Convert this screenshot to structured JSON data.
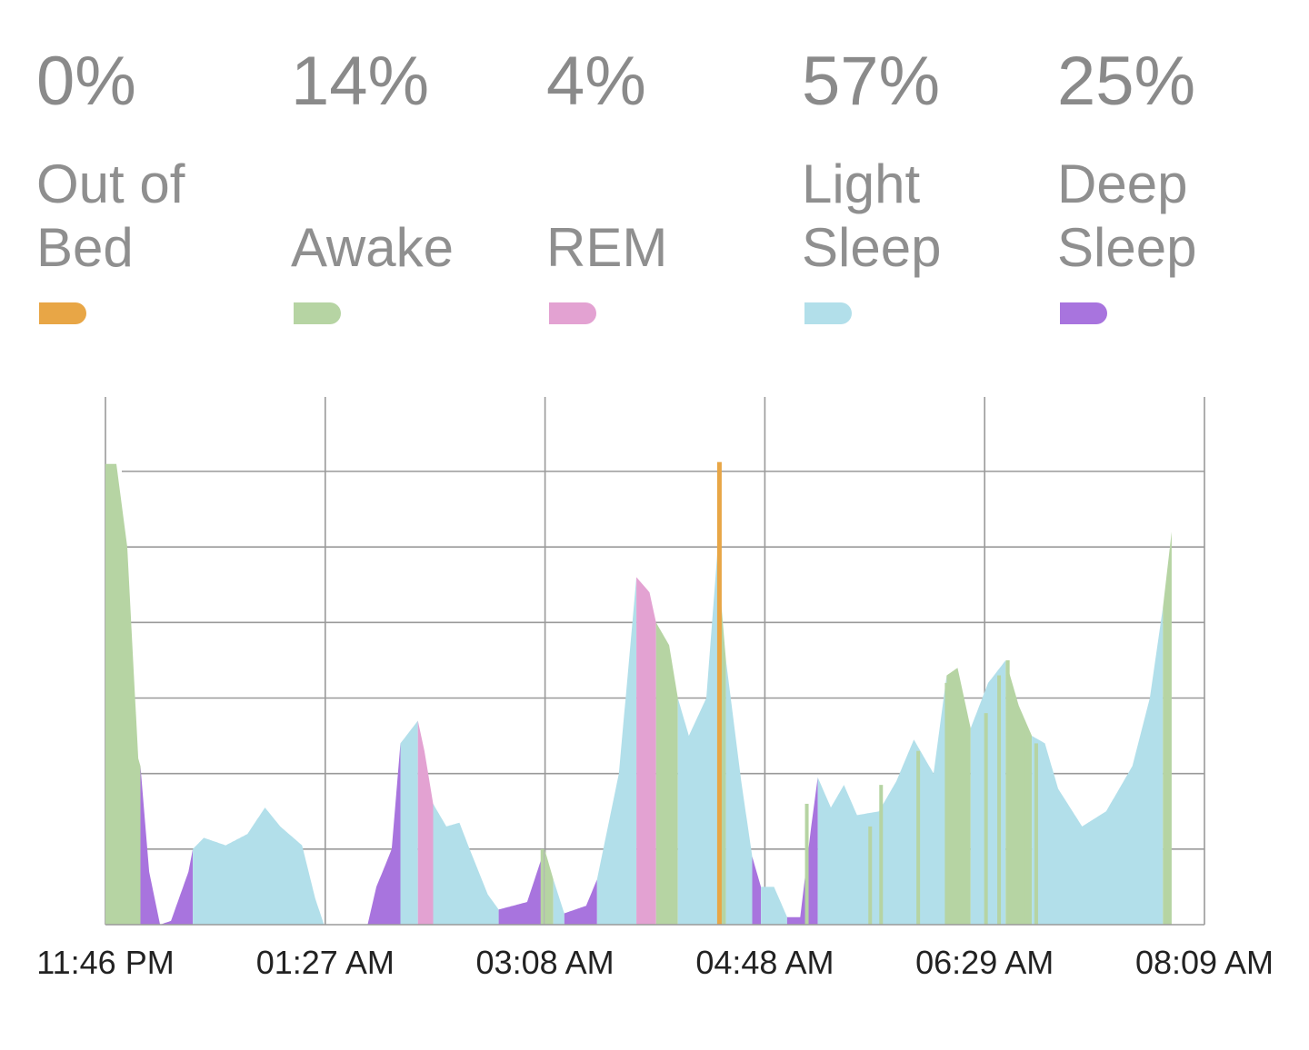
{
  "legend": [
    {
      "percent": "0%",
      "label": "Out of\nBed",
      "color": "#e8a646"
    },
    {
      "percent": "14%",
      "label": "Awake",
      "color": "#b6d4a3"
    },
    {
      "percent": "4%",
      "label": "REM",
      "color": "#e3a2d2"
    },
    {
      "percent": "57%",
      "label": "Light\nSleep",
      "color": "#b2dfea"
    },
    {
      "percent": "25%",
      "label": "Deep\nSleep",
      "color": "#a874de"
    }
  ],
  "chart_data": {
    "type": "area",
    "title": "",
    "xlabel": "",
    "ylabel": "",
    "x_ticks": [
      "11:46 PM",
      "01:27 AM",
      "03:08 AM",
      "04:48 AM",
      "06:29 AM",
      "08:09 AM"
    ],
    "x_range_minutes": [
      0,
      503
    ],
    "y_range": [
      0,
      6
    ],
    "grid": true,
    "stage_colors": {
      "out_of_bed": "#e8a646",
      "awake": "#b6d4a3",
      "rem": "#e3a2d2",
      "light": "#b2dfea",
      "deep": "#a874de"
    },
    "series": [
      {
        "t": 0,
        "v": 6.1,
        "stage": "awake"
      },
      {
        "t": 5,
        "v": 6.1,
        "stage": "awake"
      },
      {
        "t": 10,
        "v": 5.0,
        "stage": "awake"
      },
      {
        "t": 15,
        "v": 2.2,
        "stage": "awake"
      },
      {
        "t": 16,
        "v": 2.1,
        "stage": "deep"
      },
      {
        "t": 20,
        "v": 0.7,
        "stage": "deep"
      },
      {
        "t": 25,
        "v": 0.0,
        "stage": "deep"
      },
      {
        "t": 30,
        "v": 0.05,
        "stage": "deep"
      },
      {
        "t": 38,
        "v": 0.7,
        "stage": "deep"
      },
      {
        "t": 40,
        "v": 1.0,
        "stage": "light"
      },
      {
        "t": 45,
        "v": 1.15,
        "stage": "light"
      },
      {
        "t": 55,
        "v": 1.05,
        "stage": "light"
      },
      {
        "t": 65,
        "v": 1.2,
        "stage": "light"
      },
      {
        "t": 73,
        "v": 1.55,
        "stage": "light"
      },
      {
        "t": 80,
        "v": 1.3,
        "stage": "light"
      },
      {
        "t": 90,
        "v": 1.05,
        "stage": "light"
      },
      {
        "t": 96,
        "v": 0.35,
        "stage": "light"
      },
      {
        "t": 100,
        "v": 0.0,
        "stage": "deep"
      },
      {
        "t": 120,
        "v": 0.0,
        "stage": "deep"
      },
      {
        "t": 124,
        "v": 0.5,
        "stage": "deep"
      },
      {
        "t": 131,
        "v": 1.0,
        "stage": "deep"
      },
      {
        "t": 135,
        "v": 2.4,
        "stage": "light"
      },
      {
        "t": 143,
        "v": 2.7,
        "stage": "rem"
      },
      {
        "t": 146,
        "v": 2.3,
        "stage": "rem"
      },
      {
        "t": 150,
        "v": 1.6,
        "stage": "light"
      },
      {
        "t": 156,
        "v": 1.3,
        "stage": "light"
      },
      {
        "t": 162,
        "v": 1.35,
        "stage": "light"
      },
      {
        "t": 166,
        "v": 1.05,
        "stage": "light"
      },
      {
        "t": 175,
        "v": 0.4,
        "stage": "light"
      },
      {
        "t": 180,
        "v": 0.2,
        "stage": "deep"
      },
      {
        "t": 193,
        "v": 0.3,
        "stage": "deep"
      },
      {
        "t": 201,
        "v": 1.0,
        "stage": "awake"
      },
      {
        "t": 205,
        "v": 0.6,
        "stage": "light"
      },
      {
        "t": 210,
        "v": 0.15,
        "stage": "deep"
      },
      {
        "t": 220,
        "v": 0.25,
        "stage": "deep"
      },
      {
        "t": 225,
        "v": 0.6,
        "stage": "light"
      },
      {
        "t": 235,
        "v": 2.0,
        "stage": "light"
      },
      {
        "t": 243,
        "v": 4.6,
        "stage": "rem"
      },
      {
        "t": 249,
        "v": 4.4,
        "stage": "rem"
      },
      {
        "t": 252,
        "v": 4.0,
        "stage": "awake"
      },
      {
        "t": 258,
        "v": 3.7,
        "stage": "awake"
      },
      {
        "t": 262,
        "v": 3.0,
        "stage": "light"
      },
      {
        "t": 267,
        "v": 2.5,
        "stage": "light"
      },
      {
        "t": 275,
        "v": 3.0,
        "stage": "light"
      },
      {
        "t": 280,
        "v": 4.9,
        "stage": "awake"
      },
      {
        "t": 284,
        "v": 3.5,
        "stage": "light"
      },
      {
        "t": 291,
        "v": 1.9,
        "stage": "light"
      },
      {
        "t": 296,
        "v": 0.9,
        "stage": "deep"
      },
      {
        "t": 300,
        "v": 0.5,
        "stage": "light"
      },
      {
        "t": 306,
        "v": 0.5,
        "stage": "light"
      },
      {
        "t": 312,
        "v": 0.1,
        "stage": "deep"
      },
      {
        "t": 318,
        "v": 0.1,
        "stage": "deep"
      },
      {
        "t": 323,
        "v": 1.3,
        "stage": "deep"
      },
      {
        "t": 326,
        "v": 1.95,
        "stage": "light"
      },
      {
        "t": 332,
        "v": 1.55,
        "stage": "light"
      },
      {
        "t": 338,
        "v": 1.85,
        "stage": "light"
      },
      {
        "t": 344,
        "v": 1.45,
        "stage": "light"
      },
      {
        "t": 354,
        "v": 1.5,
        "stage": "light"
      },
      {
        "t": 362,
        "v": 1.9,
        "stage": "light"
      },
      {
        "t": 370,
        "v": 2.45,
        "stage": "light"
      },
      {
        "t": 379,
        "v": 2.0,
        "stage": "light"
      },
      {
        "t": 385,
        "v": 3.3,
        "stage": "awake"
      },
      {
        "t": 390,
        "v": 3.4,
        "stage": "awake"
      },
      {
        "t": 396,
        "v": 2.6,
        "stage": "light"
      },
      {
        "t": 404,
        "v": 3.2,
        "stage": "light"
      },
      {
        "t": 412,
        "v": 3.5,
        "stage": "awake"
      },
      {
        "t": 418,
        "v": 2.9,
        "stage": "awake"
      },
      {
        "t": 424,
        "v": 2.5,
        "stage": "light"
      },
      {
        "t": 430,
        "v": 2.4,
        "stage": "light"
      },
      {
        "t": 436,
        "v": 1.8,
        "stage": "light"
      },
      {
        "t": 447,
        "v": 1.3,
        "stage": "light"
      },
      {
        "t": 458,
        "v": 1.5,
        "stage": "light"
      },
      {
        "t": 470,
        "v": 2.1,
        "stage": "light"
      },
      {
        "t": 478,
        "v": 3.0,
        "stage": "light"
      },
      {
        "t": 484,
        "v": 4.2,
        "stage": "awake"
      },
      {
        "t": 488,
        "v": 5.2,
        "stage": "awake"
      }
    ],
    "awake_spikes": [
      {
        "t": 200,
        "v": 1.0
      },
      {
        "t": 321,
        "v": 1.6
      },
      {
        "t": 350,
        "v": 1.3
      },
      {
        "t": 355,
        "v": 1.85
      },
      {
        "t": 372,
        "v": 2.3
      },
      {
        "t": 385,
        "v": 3.2
      },
      {
        "t": 389,
        "v": 3.1
      },
      {
        "t": 403,
        "v": 2.8
      },
      {
        "t": 409,
        "v": 3.3
      },
      {
        "t": 413,
        "v": 3.5
      },
      {
        "t": 420,
        "v": 2.7
      },
      {
        "t": 426,
        "v": 2.4
      }
    ],
    "out_of_bed_events": [
      {
        "t": 281,
        "v": 6.1
      }
    ]
  }
}
